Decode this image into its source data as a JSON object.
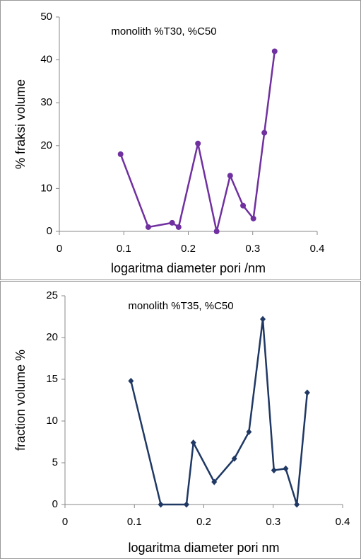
{
  "chart_data": [
    {
      "type": "line",
      "title": "monolith  %T30, %C50",
      "x_label": "logaritma diameter pori /nm",
      "y_label": "% fraksi volume",
      "marker": "circle",
      "series": [
        {
          "name": "monolith  %T30, %C50",
          "color": "#7030a0",
          "x": [
            0.095,
            0.138,
            0.175,
            0.185,
            0.215,
            0.244,
            0.265,
            0.285,
            0.301,
            0.318,
            0.334
          ],
          "values": [
            18,
            1,
            2,
            1,
            20.5,
            0,
            13,
            6,
            3,
            23,
            42
          ]
        }
      ],
      "xlim": [
        0,
        0.4
      ],
      "xticks": [
        0,
        0.1,
        0.2,
        0.3,
        0.4
      ],
      "ylim": [
        0,
        50
      ],
      "yticks": [
        0,
        10,
        20,
        30,
        40,
        50
      ],
      "grid": false
    },
    {
      "type": "line",
      "title": "monolith %T35, %C50",
      "x_label": "logaritma diameter pori nm",
      "y_label": "fraction volume %",
      "marker": "diamond",
      "series": [
        {
          "name": "monolith %T35, %C50",
          "color": "#1f3864",
          "x": [
            0.095,
            0.138,
            0.175,
            0.185,
            0.215,
            0.244,
            0.265,
            0.285,
            0.301,
            0.318,
            0.334,
            0.349
          ],
          "values": [
            14.8,
            0,
            0,
            7.4,
            2.7,
            5.5,
            8.7,
            22.2,
            4.1,
            4.3,
            0,
            13.4
          ]
        }
      ],
      "xlim": [
        0,
        0.4
      ],
      "xticks": [
        0,
        0.1,
        0.2,
        0.3,
        0.4
      ],
      "ylim": [
        0,
        25
      ],
      "yticks": [
        0,
        5,
        10,
        15,
        20,
        25
      ],
      "grid": false
    }
  ]
}
